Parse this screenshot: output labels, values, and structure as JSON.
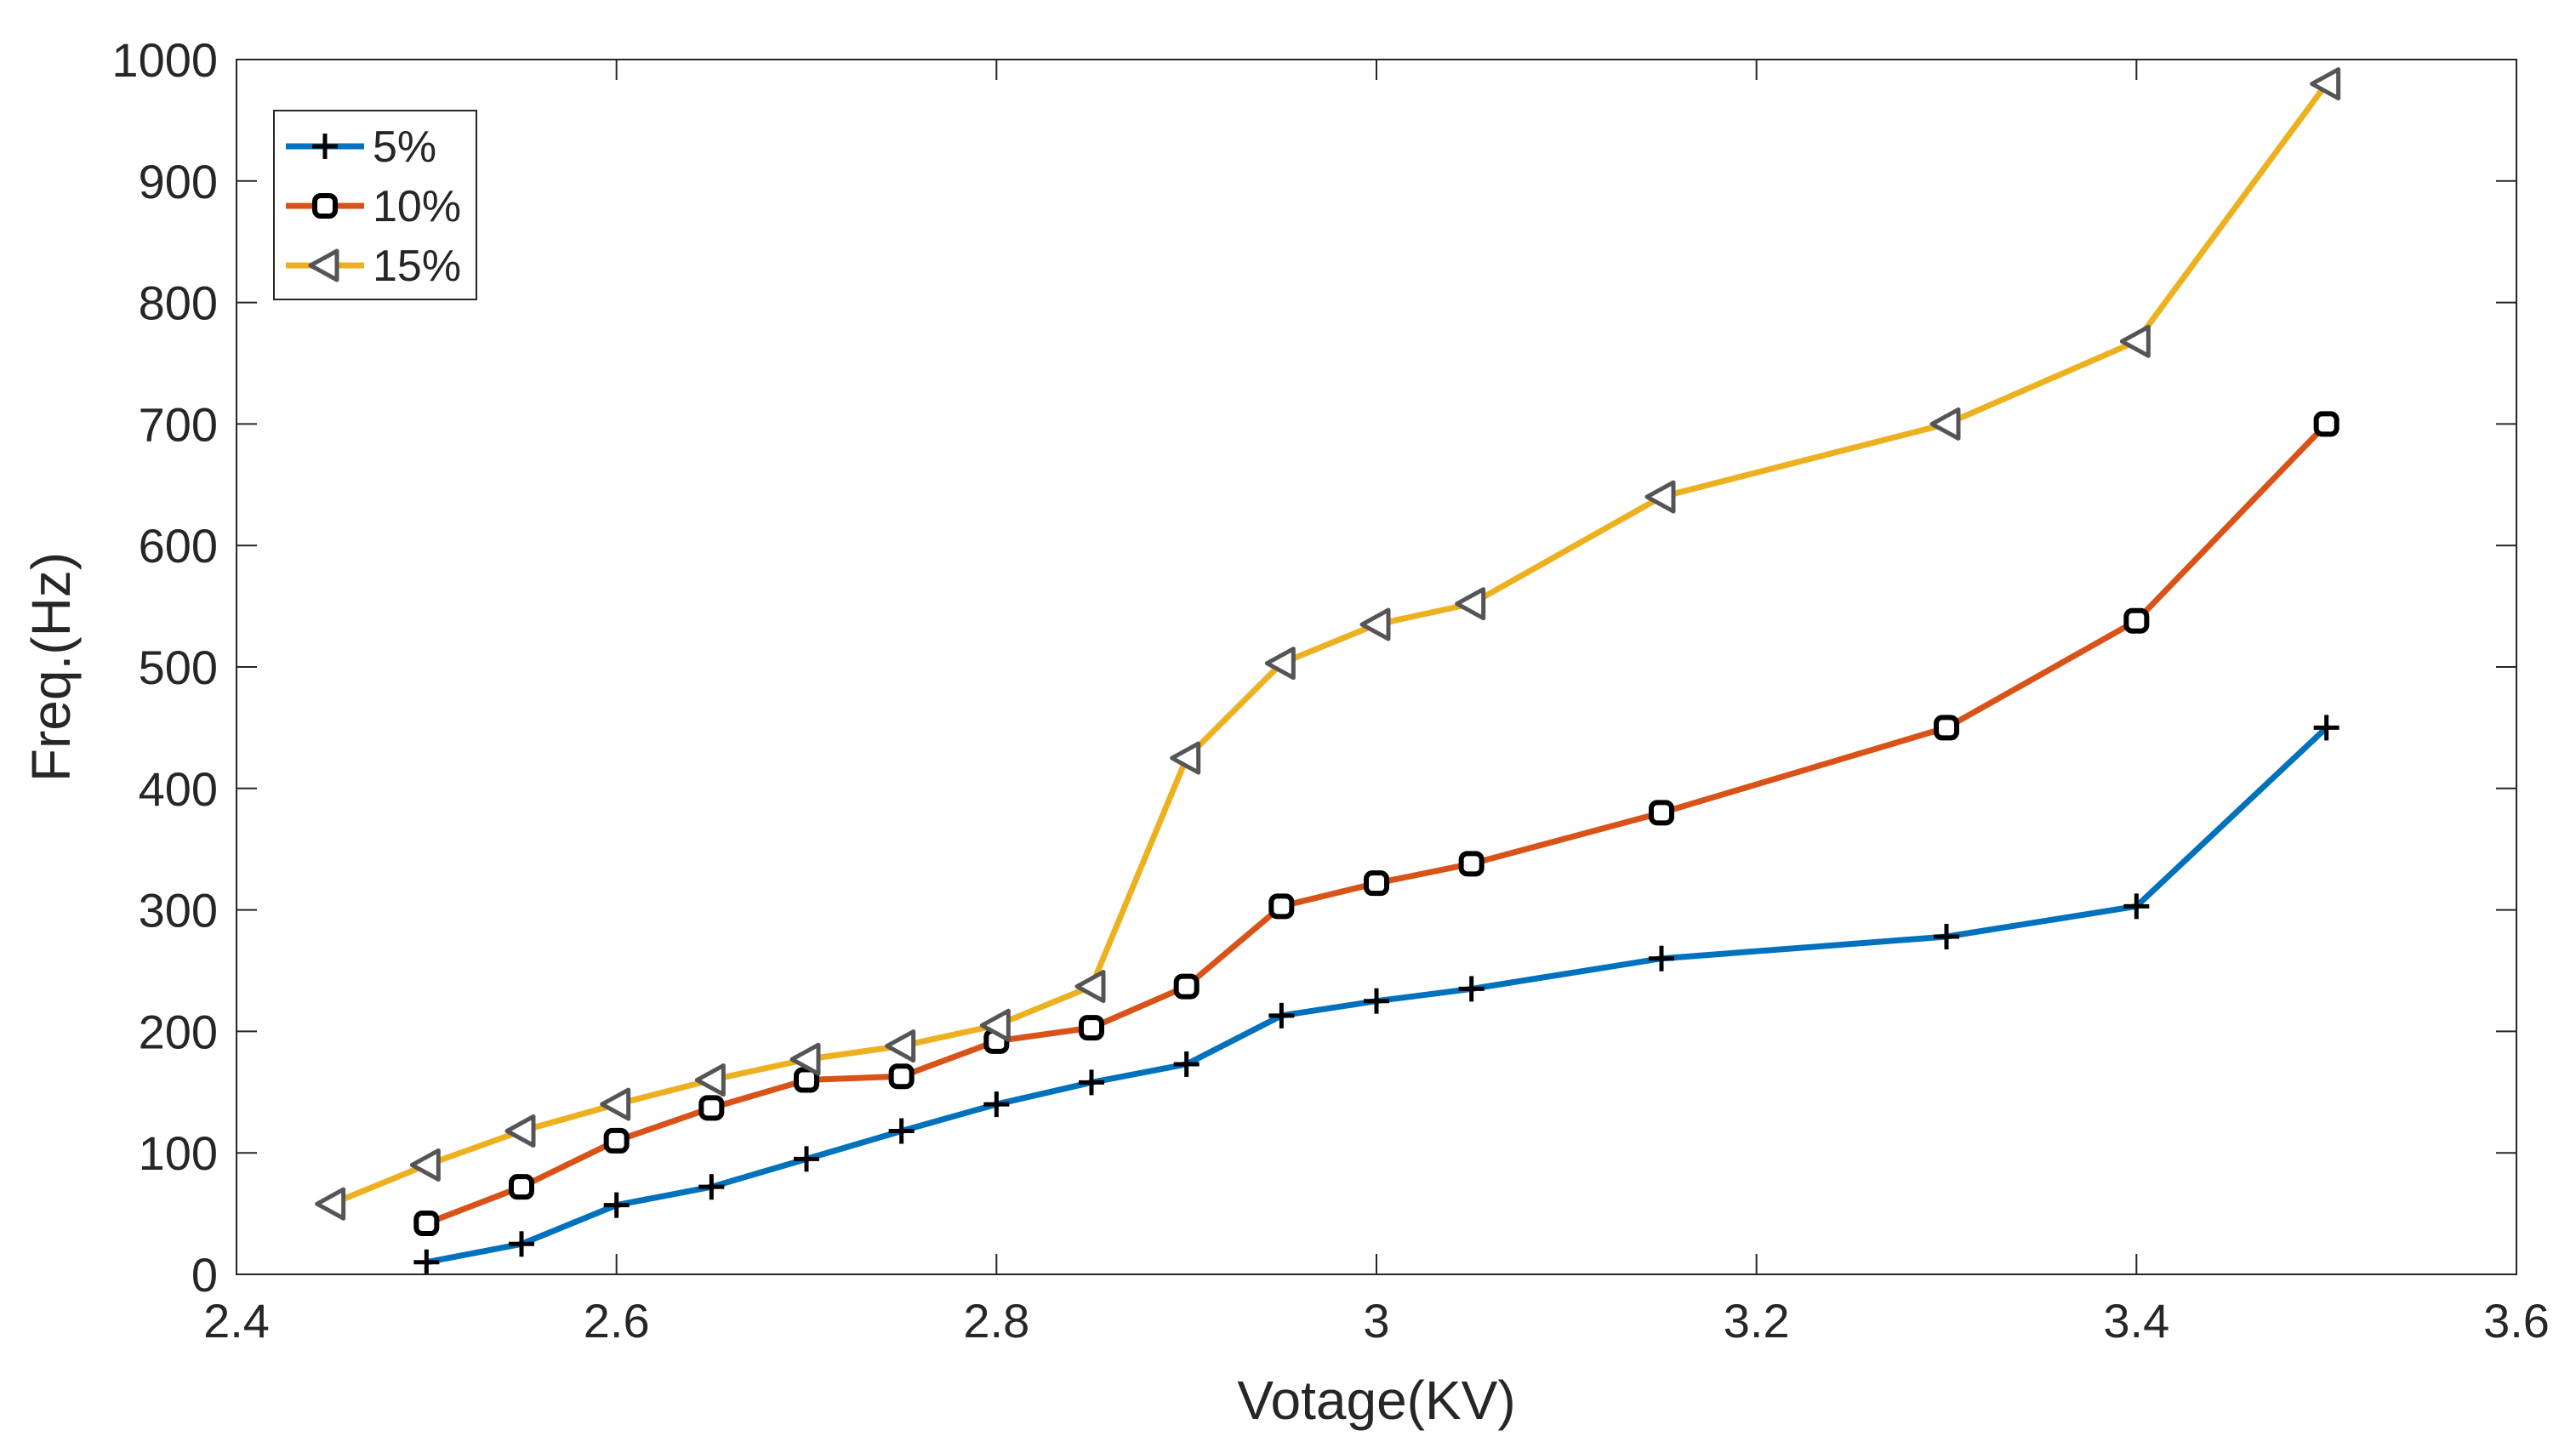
{
  "chart_data": {
    "type": "line",
    "title": "",
    "xlabel": "Votage(KV)",
    "ylabel": "Freq.(Hz)",
    "xlim": [
      2.4,
      3.6
    ],
    "ylim": [
      0,
      1000
    ],
    "xticks": [
      2.4,
      2.6,
      2.8,
      3,
      3.2,
      3.4,
      3.6
    ],
    "xtick_labels": [
      "2.4",
      "2.6",
      "2.8",
      "3",
      "3.2",
      "3.4",
      "3.6"
    ],
    "yticks": [
      0,
      100,
      200,
      300,
      400,
      500,
      600,
      700,
      800,
      900,
      1000
    ],
    "ytick_labels": [
      "0",
      "100",
      "200",
      "300",
      "400",
      "500",
      "600",
      "700",
      "800",
      "900",
      "1000"
    ],
    "grid": false,
    "legend_position": "top-left",
    "series": [
      {
        "name": "5%",
        "marker": "plus",
        "color": "#0072BD",
        "x": [
          2.5,
          2.55,
          2.6,
          2.65,
          2.7,
          2.75,
          2.8,
          2.85,
          2.9,
          2.95,
          3.0,
          3.05,
          3.15,
          3.3,
          3.4,
          3.5
        ],
        "y": [
          10,
          25,
          57,
          72,
          95,
          118,
          140,
          158,
          173,
          213,
          225,
          235,
          260,
          278,
          303,
          450
        ]
      },
      {
        "name": "10%",
        "marker": "square",
        "color": "#D95319",
        "x": [
          2.5,
          2.55,
          2.6,
          2.65,
          2.7,
          2.75,
          2.8,
          2.85,
          2.9,
          2.95,
          3.0,
          3.05,
          3.15,
          3.3,
          3.4,
          3.5
        ],
        "y": [
          42,
          72,
          110,
          137,
          160,
          163,
          192,
          203,
          237,
          303,
          322,
          338,
          380,
          450,
          538,
          700
        ]
      },
      {
        "name": "15%",
        "marker": "triangle-left",
        "color": "#EDB120",
        "x": [
          2.45,
          2.5,
          2.55,
          2.6,
          2.65,
          2.7,
          2.75,
          2.8,
          2.85,
          2.9,
          2.95,
          3.0,
          3.05,
          3.15,
          3.3,
          3.4,
          3.5
        ],
        "y": [
          58,
          90,
          118,
          140,
          160,
          177,
          188,
          205,
          237,
          425,
          503,
          535,
          552,
          640,
          700,
          768,
          980
        ]
      }
    ]
  }
}
